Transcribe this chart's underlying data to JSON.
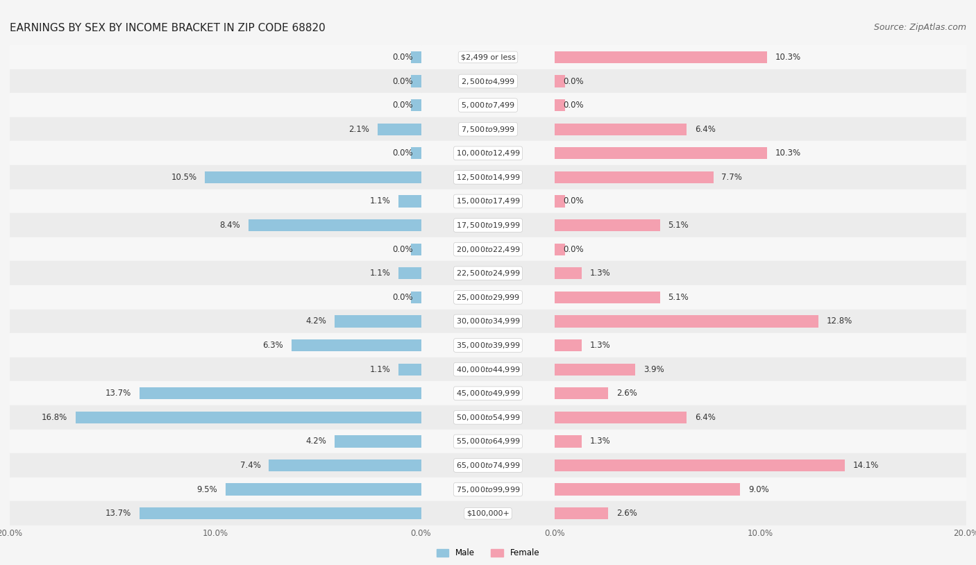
{
  "title": "EARNINGS BY SEX BY INCOME BRACKET IN ZIP CODE 68820",
  "source": "Source: ZipAtlas.com",
  "categories": [
    "$2,499 or less",
    "$2,500 to $4,999",
    "$5,000 to $7,499",
    "$7,500 to $9,999",
    "$10,000 to $12,499",
    "$12,500 to $14,999",
    "$15,000 to $17,499",
    "$17,500 to $19,999",
    "$20,000 to $22,499",
    "$22,500 to $24,999",
    "$25,000 to $29,999",
    "$30,000 to $34,999",
    "$35,000 to $39,999",
    "$40,000 to $44,999",
    "$45,000 to $49,999",
    "$50,000 to $54,999",
    "$55,000 to $64,999",
    "$65,000 to $74,999",
    "$75,000 to $99,999",
    "$100,000+"
  ],
  "male": [
    0.0,
    0.0,
    0.0,
    2.1,
    0.0,
    10.5,
    1.1,
    8.4,
    0.0,
    1.1,
    0.0,
    4.2,
    6.3,
    1.1,
    13.7,
    16.8,
    4.2,
    7.4,
    9.5,
    13.7
  ],
  "female": [
    10.3,
    0.0,
    0.0,
    6.4,
    10.3,
    7.7,
    0.0,
    5.1,
    0.0,
    1.3,
    5.1,
    12.8,
    1.3,
    3.9,
    2.6,
    6.4,
    1.3,
    14.1,
    9.0,
    2.6
  ],
  "male_color": "#92c5de",
  "female_color": "#f4a0b0",
  "row_colors": [
    "#f7f7f7",
    "#ececec"
  ],
  "label_bg": "#ffffff",
  "xlim": 20.0,
  "title_fontsize": 11,
  "source_fontsize": 9,
  "label_fontsize": 8.5,
  "tick_fontsize": 8.5,
  "bar_height": 0.5
}
